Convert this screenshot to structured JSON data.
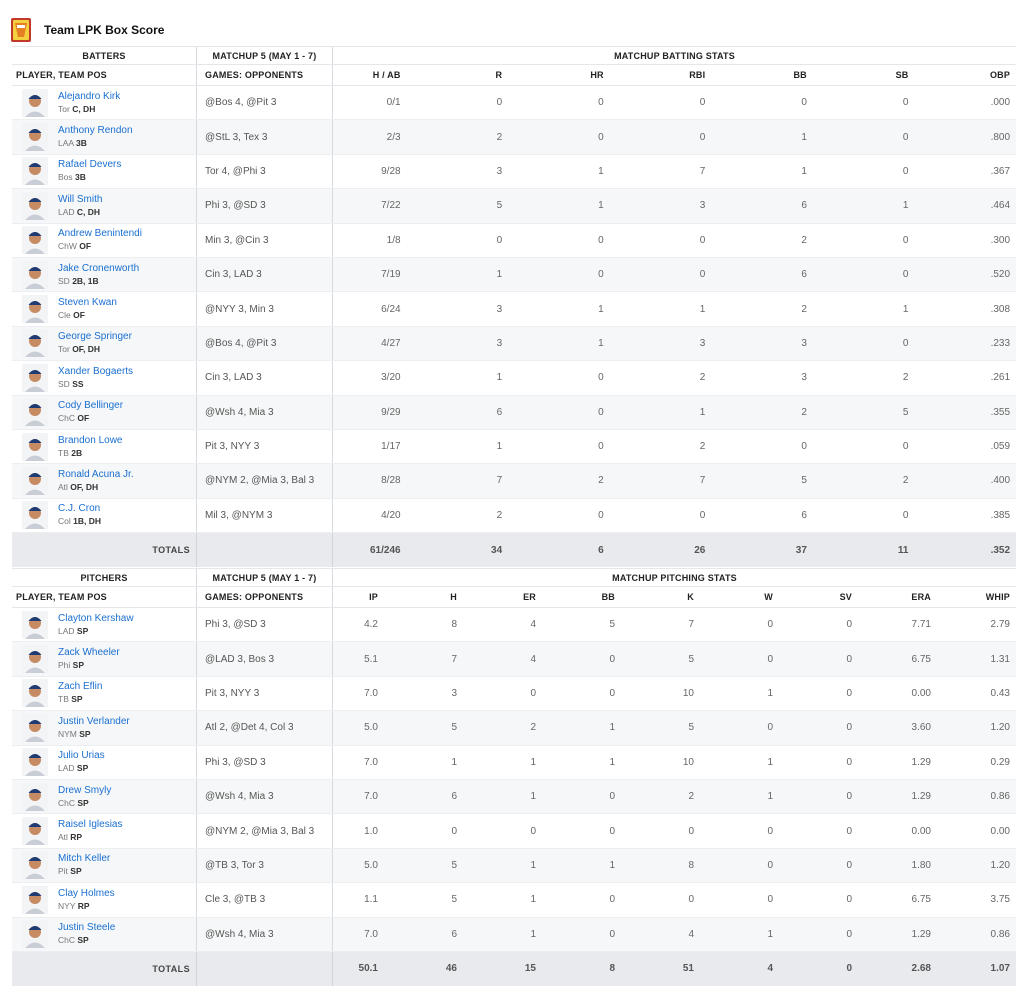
{
  "title": "Team LPK Box Score",
  "colors": {
    "link": "#1a6fd0",
    "totals_bg": "#e8eaed",
    "alt_row_bg": "#f6f7f8"
  },
  "batting": {
    "group_players": "BATTERS",
    "group_matchup": "MATCHUP 5 (MAY 1 - 7)",
    "group_stats": "MATCHUP BATTING STATS",
    "col_player": "PLAYER, TEAM POS",
    "col_games": "GAMES: OPPONENTS",
    "stat_headers": [
      "H / AB",
      "R",
      "HR",
      "RBI",
      "BB",
      "SB",
      "OBP"
    ],
    "rows": [
      {
        "name": "Alejandro Kirk",
        "team": "Tor",
        "pos": "C, DH",
        "games": "@Bos 4, @Pit 3",
        "stats": [
          "0/1",
          "0",
          "0",
          "0",
          "0",
          "0",
          ".000"
        ]
      },
      {
        "name": "Anthony Rendon",
        "team": "LAA",
        "pos": "3B",
        "games": "@StL 3, Tex 3",
        "stats": [
          "2/3",
          "2",
          "0",
          "0",
          "1",
          "0",
          ".800"
        ]
      },
      {
        "name": "Rafael Devers",
        "team": "Bos",
        "pos": "3B",
        "games": "Tor 4, @Phi 3",
        "stats": [
          "9/28",
          "3",
          "1",
          "7",
          "1",
          "0",
          ".367"
        ]
      },
      {
        "name": "Will Smith",
        "team": "LAD",
        "pos": "C, DH",
        "games": "Phi 3, @SD 3",
        "stats": [
          "7/22",
          "5",
          "1",
          "3",
          "6",
          "1",
          ".464"
        ]
      },
      {
        "name": "Andrew Benintendi",
        "team": "ChW",
        "pos": "OF",
        "games": "Min 3, @Cin 3",
        "stats": [
          "1/8",
          "0",
          "0",
          "0",
          "2",
          "0",
          ".300"
        ]
      },
      {
        "name": "Jake Cronenworth",
        "team": "SD",
        "pos": "2B, 1B",
        "games": "Cin 3, LAD 3",
        "stats": [
          "7/19",
          "1",
          "0",
          "0",
          "6",
          "0",
          ".520"
        ]
      },
      {
        "name": "Steven Kwan",
        "team": "Cle",
        "pos": "OF",
        "games": "@NYY 3, Min 3",
        "stats": [
          "6/24",
          "3",
          "1",
          "1",
          "2",
          "1",
          ".308"
        ]
      },
      {
        "name": "George Springer",
        "team": "Tor",
        "pos": "OF, DH",
        "games": "@Bos 4, @Pit 3",
        "stats": [
          "4/27",
          "3",
          "1",
          "3",
          "3",
          "0",
          ".233"
        ]
      },
      {
        "name": "Xander Bogaerts",
        "team": "SD",
        "pos": "SS",
        "games": "Cin 3, LAD 3",
        "stats": [
          "3/20",
          "1",
          "0",
          "2",
          "3",
          "2",
          ".261"
        ]
      },
      {
        "name": "Cody Bellinger",
        "team": "ChC",
        "pos": "OF",
        "games": "@Wsh 4, Mia 3",
        "stats": [
          "9/29",
          "6",
          "0",
          "1",
          "2",
          "5",
          ".355"
        ]
      },
      {
        "name": "Brandon Lowe",
        "team": "TB",
        "pos": "2B",
        "games": "Pit 3, NYY 3",
        "stats": [
          "1/17",
          "1",
          "0",
          "2",
          "0",
          "0",
          ".059"
        ]
      },
      {
        "name": "Ronald Acuna Jr.",
        "team": "Atl",
        "pos": "OF, DH",
        "games": "@NYM 2, @Mia 3, Bal 3",
        "stats": [
          "8/28",
          "7",
          "2",
          "7",
          "5",
          "2",
          ".400"
        ]
      },
      {
        "name": "C.J. Cron",
        "team": "Col",
        "pos": "1B, DH",
        "games": "Mil 3, @NYM 3",
        "stats": [
          "4/20",
          "2",
          "0",
          "0",
          "6",
          "0",
          ".385"
        ]
      }
    ],
    "totals_label": "TOTALS",
    "totals": [
      "61/246",
      "34",
      "6",
      "26",
      "37",
      "11",
      ".352"
    ]
  },
  "pitching": {
    "group_players": "PITCHERS",
    "group_matchup": "MATCHUP 5 (MAY 1 - 7)",
    "group_stats": "MATCHUP PITCHING STATS",
    "col_player": "PLAYER, TEAM POS",
    "col_games": "GAMES: OPPONENTS",
    "stat_headers": [
      "IP",
      "H",
      "ER",
      "BB",
      "K",
      "W",
      "SV",
      "ERA",
      "WHIP"
    ],
    "rows": [
      {
        "name": "Clayton Kershaw",
        "team": "LAD",
        "pos": "SP",
        "games": "Phi 3, @SD 3",
        "stats": [
          "4.2",
          "8",
          "4",
          "5",
          "7",
          "0",
          "0",
          "7.71",
          "2.79"
        ]
      },
      {
        "name": "Zack Wheeler",
        "team": "Phi",
        "pos": "SP",
        "games": "@LAD 3, Bos 3",
        "stats": [
          "5.1",
          "7",
          "4",
          "0",
          "5",
          "0",
          "0",
          "6.75",
          "1.31"
        ]
      },
      {
        "name": "Zach Eflin",
        "team": "TB",
        "pos": "SP",
        "games": "Pit 3, NYY 3",
        "stats": [
          "7.0",
          "3",
          "0",
          "0",
          "10",
          "1",
          "0",
          "0.00",
          "0.43"
        ]
      },
      {
        "name": "Justin Verlander",
        "team": "NYM",
        "pos": "SP",
        "games": "Atl 2, @Det 4, Col 3",
        "stats": [
          "5.0",
          "5",
          "2",
          "1",
          "5",
          "0",
          "0",
          "3.60",
          "1.20"
        ]
      },
      {
        "name": "Julio Urias",
        "team": "LAD",
        "pos": "SP",
        "games": "Phi 3, @SD 3",
        "stats": [
          "7.0",
          "1",
          "1",
          "1",
          "10",
          "1",
          "0",
          "1.29",
          "0.29"
        ]
      },
      {
        "name": "Drew Smyly",
        "team": "ChC",
        "pos": "SP",
        "games": "@Wsh 4, Mia 3",
        "stats": [
          "7.0",
          "6",
          "1",
          "0",
          "2",
          "1",
          "0",
          "1.29",
          "0.86"
        ]
      },
      {
        "name": "Raisel Iglesias",
        "team": "Atl",
        "pos": "RP",
        "games": "@NYM 2, @Mia 3, Bal 3",
        "stats": [
          "1.0",
          "0",
          "0",
          "0",
          "0",
          "0",
          "0",
          "0.00",
          "0.00"
        ]
      },
      {
        "name": "Mitch Keller",
        "team": "Pit",
        "pos": "SP",
        "games": "@TB 3, Tor 3",
        "stats": [
          "5.0",
          "5",
          "1",
          "1",
          "8",
          "0",
          "0",
          "1.80",
          "1.20"
        ]
      },
      {
        "name": "Clay Holmes",
        "team": "NYY",
        "pos": "RP",
        "games": "Cle 3, @TB 3",
        "stats": [
          "1.1",
          "5",
          "1",
          "0",
          "0",
          "0",
          "0",
          "6.75",
          "3.75"
        ]
      },
      {
        "name": "Justin Steele",
        "team": "ChC",
        "pos": "SP",
        "games": "@Wsh 4, Mia 3",
        "stats": [
          "7.0",
          "6",
          "1",
          "0",
          "4",
          "1",
          "0",
          "1.29",
          "0.86"
        ]
      }
    ],
    "totals_label": "TOTALS",
    "totals": [
      "50.1",
      "46",
      "15",
      "8",
      "51",
      "4",
      "0",
      "2.68",
      "1.07"
    ]
  }
}
